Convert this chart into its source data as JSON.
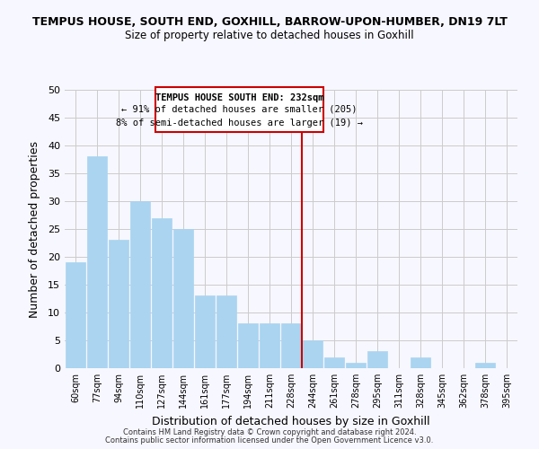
{
  "title": "TEMPUS HOUSE, SOUTH END, GOXHILL, BARROW-UPON-HUMBER, DN19 7LT",
  "subtitle": "Size of property relative to detached houses in Goxhill",
  "xlabel": "Distribution of detached houses by size in Goxhill",
  "ylabel": "Number of detached properties",
  "bar_labels": [
    "60sqm",
    "77sqm",
    "94sqm",
    "110sqm",
    "127sqm",
    "144sqm",
    "161sqm",
    "177sqm",
    "194sqm",
    "211sqm",
    "228sqm",
    "244sqm",
    "261sqm",
    "278sqm",
    "295sqm",
    "311sqm",
    "328sqm",
    "345sqm",
    "362sqm",
    "378sqm",
    "395sqm"
  ],
  "bar_values": [
    19,
    38,
    23,
    30,
    27,
    25,
    13,
    13,
    8,
    8,
    8,
    5,
    2,
    1,
    3,
    0,
    2,
    0,
    0,
    1,
    0
  ],
  "bar_color": "#aad4f0",
  "bar_edge_color": "#aad4f0",
  "grid_color": "#cccccc",
  "background_color": "#f7f7ff",
  "vline_x": 10.5,
  "vline_color": "#cc0000",
  "annotation_title": "TEMPUS HOUSE SOUTH END: 232sqm",
  "annotation_line1": "← 91% of detached houses are smaller (205)",
  "annotation_line2": "8% of semi-detached houses are larger (19) →",
  "ylim": [
    0,
    50
  ],
  "yticks": [
    0,
    5,
    10,
    15,
    20,
    25,
    30,
    35,
    40,
    45,
    50
  ],
  "footer1": "Contains HM Land Registry data © Crown copyright and database right 2024.",
  "footer2": "Contains public sector information licensed under the Open Government Licence v3.0."
}
